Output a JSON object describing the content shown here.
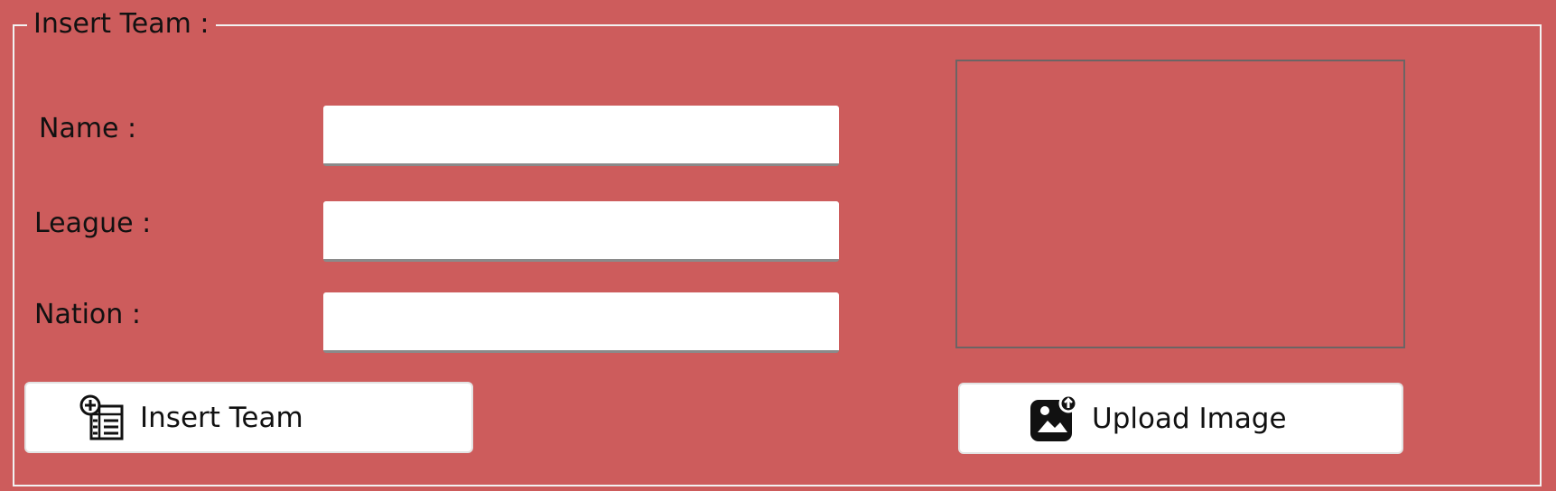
{
  "groupbox": {
    "title": "Insert Team :"
  },
  "form": {
    "name_label": "Name :",
    "name_value": "",
    "league_label": "League :",
    "league_value": "",
    "nation_label": "Nation :",
    "nation_value": ""
  },
  "buttons": {
    "insert_label": "Insert Team",
    "insert_icon": "table-add-icon",
    "upload_label": "Upload Image",
    "upload_icon": "image-upload-icon"
  },
  "colors": {
    "background": "#cd5c5c",
    "border": "#f2f2f2",
    "field": "#ffffff",
    "text": "#111111"
  }
}
